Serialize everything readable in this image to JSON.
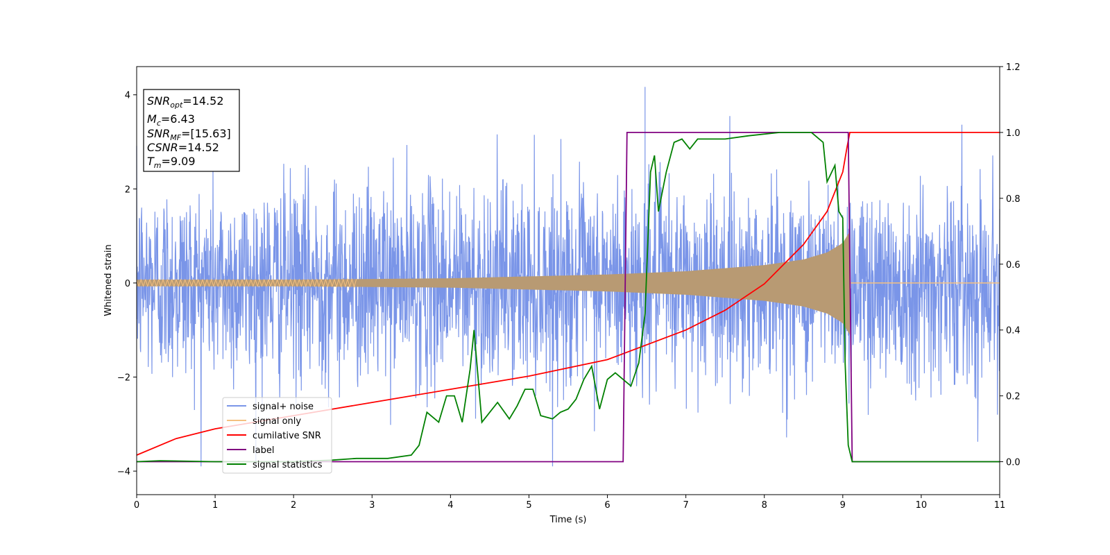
{
  "chart_data": {
    "type": "line",
    "xlabel": "Time (s)",
    "ylabel": "Whitened strain",
    "xlim": [
      0,
      11
    ],
    "ylim_left": [
      -4.5,
      4.6
    ],
    "ylim_right": [
      -0.1,
      1.2
    ],
    "x_ticks": [
      "0",
      "1",
      "2",
      "3",
      "4",
      "5",
      "6",
      "7",
      "8",
      "9",
      "10",
      "11"
    ],
    "y_left_ticks": [
      "−4",
      "−2",
      "0",
      "2",
      "4"
    ],
    "y_right_ticks": [
      "0.0",
      "0.2",
      "0.4",
      "0.6",
      "0.8",
      "1.0",
      "1.2"
    ],
    "grid": false,
    "legend_position": "lower-left",
    "annotation": {
      "snr_opt": {
        "symbol": "SNR",
        "sub": "opt",
        "value": "=14.52"
      },
      "mc": {
        "symbol": "M",
        "sub": "c",
        "value": "=6.43"
      },
      "snr_mf": {
        "symbol": "SNR",
        "sub": "MF",
        "value": "=[15.63]"
      },
      "csnr": {
        "symbol": "CSNR",
        "value": "=14.52"
      },
      "tm": {
        "symbol": "T",
        "sub": "m",
        "value": "=9.09"
      }
    },
    "series": [
      {
        "name": "signal+ noise",
        "axis": "left",
        "color": "#7a95e8",
        "description_values": "gaussian noise, std ≈ 1.0, peaks up to about ±3.5, max ≈ 4.17 at t ≈ 6.48"
      },
      {
        "name": "signal only",
        "axis": "left",
        "color": "#f5c080",
        "amplitude_points": [
          [
            0,
            0.07
          ],
          [
            2,
            0.07
          ],
          [
            4,
            0.1
          ],
          [
            6,
            0.18
          ],
          [
            7,
            0.25
          ],
          [
            8,
            0.38
          ],
          [
            8.5,
            0.5
          ],
          [
            8.8,
            0.65
          ],
          [
            9.0,
            0.85
          ],
          [
            9.09,
            1.1
          ]
        ],
        "merger_time": 9.09
      },
      {
        "name": "cumilative SNR",
        "axis": "right",
        "color": "#ff0000",
        "points": [
          [
            0,
            0.02
          ],
          [
            0.5,
            0.07
          ],
          [
            1,
            0.1
          ],
          [
            2,
            0.14
          ],
          [
            3,
            0.18
          ],
          [
            4,
            0.22
          ],
          [
            5,
            0.26
          ],
          [
            6,
            0.31
          ],
          [
            7,
            0.4
          ],
          [
            7.5,
            0.46
          ],
          [
            8,
            0.54
          ],
          [
            8.5,
            0.66
          ],
          [
            8.8,
            0.76
          ],
          [
            9.0,
            0.88
          ],
          [
            9.05,
            0.95
          ],
          [
            9.09,
            1.0
          ],
          [
            11,
            1.0
          ]
        ]
      },
      {
        "name": "label",
        "axis": "right",
        "color": "#800080",
        "points": [
          [
            0,
            0
          ],
          [
            6.2,
            0
          ],
          [
            6.25,
            1.0
          ],
          [
            9.07,
            1.0
          ],
          [
            9.12,
            0
          ],
          [
            11,
            0
          ]
        ]
      },
      {
        "name": "signal statistics",
        "axis": "right",
        "color": "#008000",
        "points": [
          [
            0,
            0.0
          ],
          [
            0.3,
            0.003
          ],
          [
            1,
            0.0
          ],
          [
            2,
            0.0
          ],
          [
            2.5,
            0.005
          ],
          [
            2.8,
            0.01
          ],
          [
            3.2,
            0.01
          ],
          [
            3.5,
            0.02
          ],
          [
            3.6,
            0.05
          ],
          [
            3.7,
            0.15
          ],
          [
            3.85,
            0.12
          ],
          [
            3.95,
            0.2
          ],
          [
            4.05,
            0.2
          ],
          [
            4.15,
            0.12
          ],
          [
            4.25,
            0.28
          ],
          [
            4.3,
            0.4
          ],
          [
            4.4,
            0.12
          ],
          [
            4.5,
            0.15
          ],
          [
            4.6,
            0.18
          ],
          [
            4.75,
            0.13
          ],
          [
            4.85,
            0.17
          ],
          [
            4.95,
            0.22
          ],
          [
            5.05,
            0.22
          ],
          [
            5.15,
            0.14
          ],
          [
            5.3,
            0.13
          ],
          [
            5.4,
            0.15
          ],
          [
            5.5,
            0.16
          ],
          [
            5.6,
            0.19
          ],
          [
            5.7,
            0.25
          ],
          [
            5.8,
            0.29
          ],
          [
            5.9,
            0.16
          ],
          [
            6.0,
            0.25
          ],
          [
            6.1,
            0.27
          ],
          [
            6.2,
            0.25
          ],
          [
            6.3,
            0.23
          ],
          [
            6.4,
            0.3
          ],
          [
            6.48,
            0.45
          ],
          [
            6.55,
            0.88
          ],
          [
            6.6,
            0.93
          ],
          [
            6.65,
            0.76
          ],
          [
            6.75,
            0.88
          ],
          [
            6.85,
            0.97
          ],
          [
            6.95,
            0.98
          ],
          [
            7.05,
            0.95
          ],
          [
            7.15,
            0.98
          ],
          [
            7.3,
            0.98
          ],
          [
            7.5,
            0.98
          ],
          [
            7.8,
            0.99
          ],
          [
            8.2,
            1.0
          ],
          [
            8.6,
            1.0
          ],
          [
            8.75,
            0.97
          ],
          [
            8.8,
            0.85
          ],
          [
            8.9,
            0.9
          ],
          [
            8.95,
            0.76
          ],
          [
            9.0,
            0.74
          ],
          [
            9.03,
            0.3
          ],
          [
            9.07,
            0.05
          ],
          [
            9.12,
            0.0
          ],
          [
            11,
            0.0
          ]
        ]
      }
    ]
  }
}
